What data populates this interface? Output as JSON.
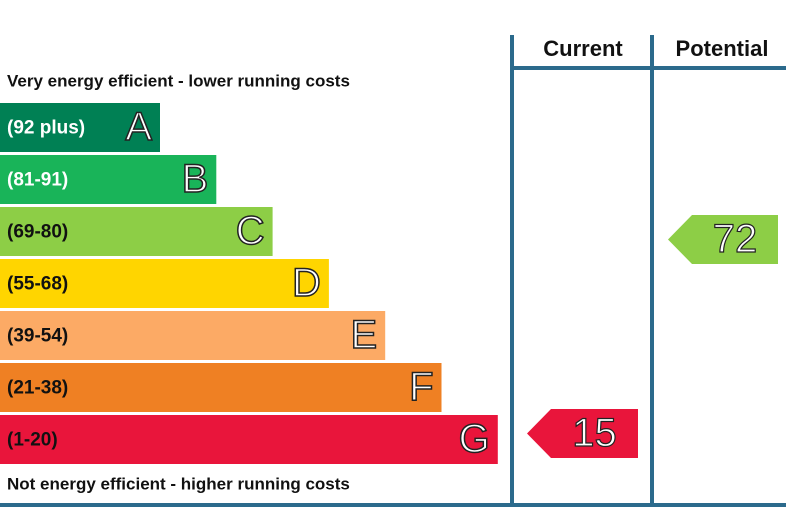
{
  "header": {
    "current": "Current",
    "potential": "Potential"
  },
  "top_note": "Very energy efficient - lower running costs",
  "bottom_note": "Not energy efficient - higher running costs",
  "bands": [
    {
      "range": "(92 plus)",
      "letter": "A"
    },
    {
      "range": "(81-91)",
      "letter": "B"
    },
    {
      "range": "(69-80)",
      "letter": "C"
    },
    {
      "range": "(55-68)",
      "letter": "D"
    },
    {
      "range": "(39-54)",
      "letter": "E"
    },
    {
      "range": "(21-38)",
      "letter": "F"
    },
    {
      "range": "(1-20)",
      "letter": "G"
    }
  ],
  "current": {
    "value": 15
  },
  "potential": {
    "value": 72
  }
}
